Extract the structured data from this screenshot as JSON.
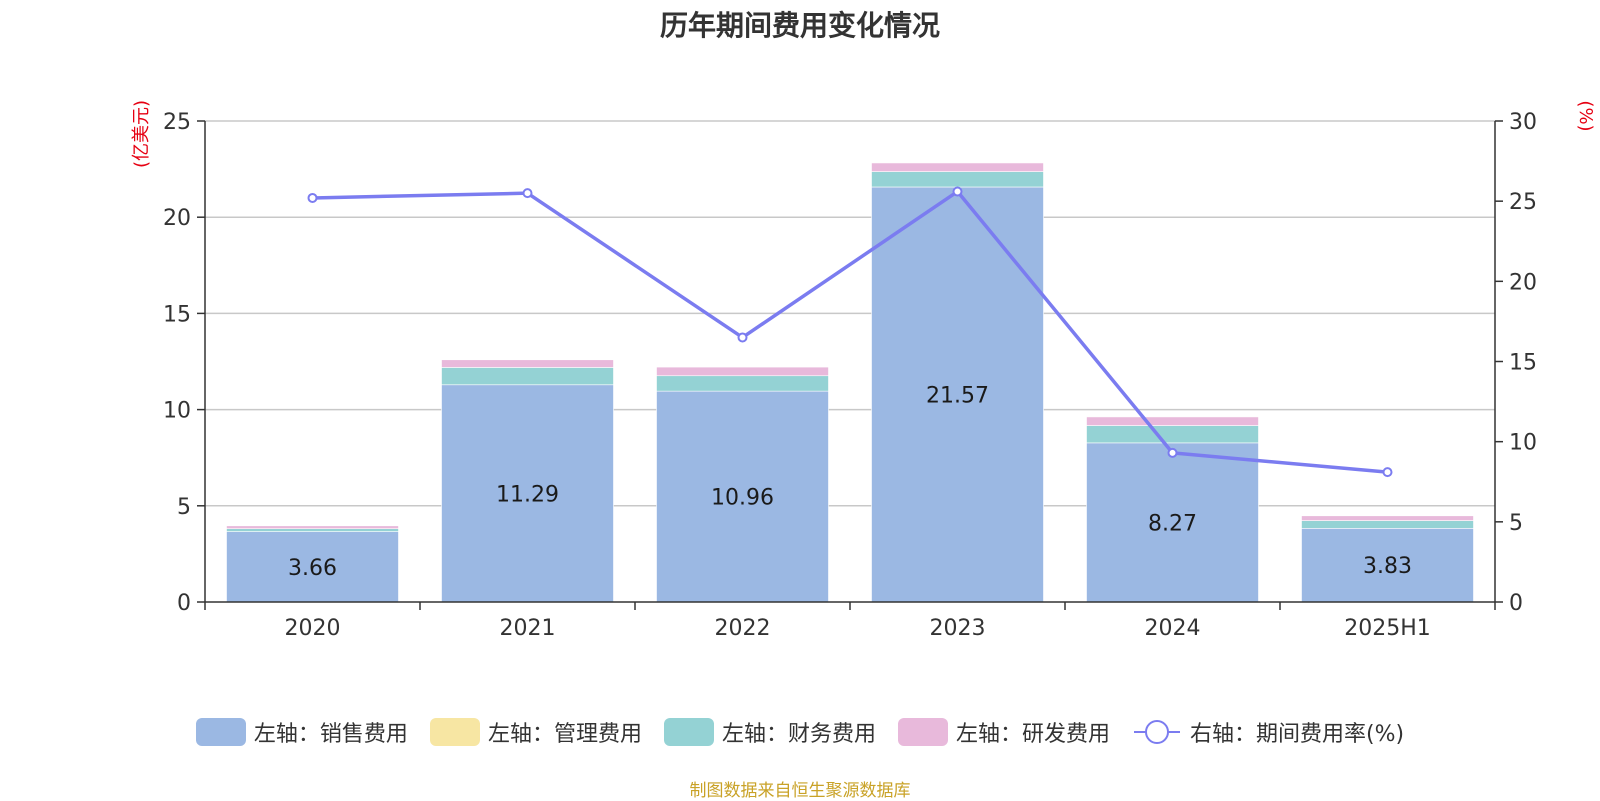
{
  "title": "历年期间费用变化情况",
  "source_note": "制图数据来自恒生聚源数据库",
  "colors": {
    "sales": "#9bb8e3",
    "admin": "#f7e6a3",
    "finance": "#94d2d4",
    "rnd": "#e8b9db",
    "rate": "#7b7cf0",
    "axis_unit": "#e60012",
    "source": "#c9a227"
  },
  "chart_data": {
    "type": "bar",
    "title": "历年期间费用变化情况",
    "categories": [
      "2020",
      "2021",
      "2022",
      "2023",
      "2024",
      "2025H1"
    ],
    "y_left": {
      "unit_label": "(亿美元)",
      "ylim": [
        0,
        25
      ],
      "ticks": [
        0,
        5,
        10,
        15,
        20,
        25
      ]
    },
    "y_right": {
      "unit_label": "(%)",
      "ylim": [
        0,
        30
      ],
      "ticks": [
        0,
        5,
        10,
        15,
        20,
        25,
        30
      ]
    },
    "grid": true,
    "legend_position": "bottom",
    "series": [
      {
        "name": "左轴：销售费用",
        "type": "bar",
        "axis": "left",
        "color_key": "sales",
        "values": [
          3.66,
          11.29,
          10.96,
          21.57,
          8.27,
          3.83
        ],
        "data_labels": [
          "3.66",
          "11.29",
          "10.96",
          "21.57",
          "8.27",
          "3.83"
        ]
      },
      {
        "name": "左轴：管理费用",
        "type": "bar",
        "axis": "left",
        "color_key": "admin",
        "values": [
          0,
          0,
          0,
          0,
          0,
          0
        ]
      },
      {
        "name": "左轴：财务费用",
        "type": "bar",
        "axis": "left",
        "color_key": "finance",
        "values": [
          0.15,
          0.9,
          0.8,
          0.8,
          0.9,
          0.4
        ]
      },
      {
        "name": "左轴：研发费用",
        "type": "bar",
        "axis": "left",
        "color_key": "rnd",
        "values": [
          0.15,
          0.4,
          0.45,
          0.45,
          0.45,
          0.25
        ]
      },
      {
        "name": "右轴：期间费用率(%)",
        "type": "line",
        "axis": "right",
        "color_key": "rate",
        "values": [
          25.2,
          25.5,
          16.5,
          25.6,
          9.3,
          8.1
        ]
      }
    ]
  }
}
